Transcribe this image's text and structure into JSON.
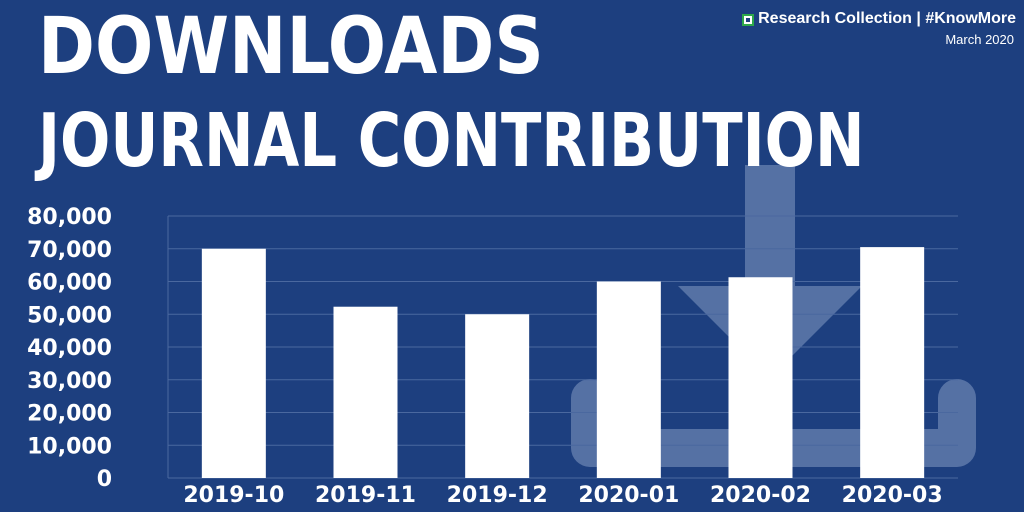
{
  "header": {
    "title_line1": "DOWNLOADS",
    "title_line2": "JOURNAL CONTRIBUTION",
    "brand": "Research Collection | #KnowMore",
    "date": "March 2020"
  },
  "colors": {
    "background": "#1d3f7f",
    "bar": "#ffffff",
    "watermark": "#5c77a8",
    "gridline": "#4a689f",
    "brand_green": "#2ea84a"
  },
  "chart_data": {
    "type": "bar",
    "title": "DOWNLOADS JOURNAL CONTRIBUTION",
    "xlabel": "",
    "ylabel": "",
    "categories": [
      "2019-10",
      "2019-11",
      "2019-12",
      "2020-01",
      "2020-02",
      "2020-03"
    ],
    "values": [
      70000,
      52300,
      50000,
      60000,
      61300,
      70500
    ],
    "ylim": [
      0,
      80000
    ],
    "yticks": [
      0,
      10000,
      20000,
      30000,
      40000,
      50000,
      60000,
      70000,
      80000
    ],
    "ytick_labels": [
      "0",
      "10,000",
      "20,000",
      "30,000",
      "40,000",
      "50,000",
      "60,000",
      "70,000",
      "80,000"
    ],
    "grid": true,
    "legend": "none"
  }
}
